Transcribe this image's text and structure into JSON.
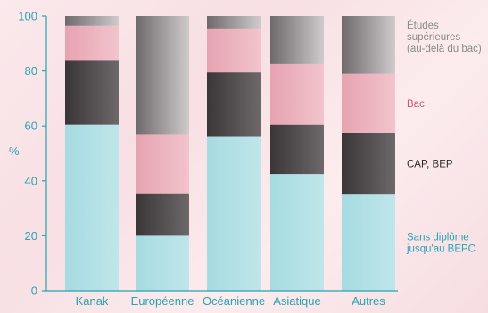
{
  "chart_data": {
    "type": "bar",
    "stacked": true,
    "ylabel": "%",
    "ylim": [
      0,
      100
    ],
    "yticks": [
      0,
      20,
      40,
      60,
      80,
      100
    ],
    "grid": false,
    "legend_placement": "right",
    "categories": [
      "Kanak",
      "Européenne",
      "Océanienne",
      "Asiatique",
      "Autres"
    ],
    "series": [
      {
        "name": "Sans diplôme jusqu'au BEPC",
        "values": [
          60.5,
          20,
          56,
          42.5,
          35
        ],
        "color": "#a9dde3",
        "legend_lines": [
          "Sans diplôme",
          "jusqu'au BEPC"
        ],
        "legend_color": "#27a3b3"
      },
      {
        "name": "CAP, BEP",
        "values": [
          23.5,
          15.5,
          23.5,
          18,
          22.5
        ],
        "color": "#3a3537",
        "legend_lines": [
          "CAP, BEP"
        ],
        "legend_color": "#2a2a2a"
      },
      {
        "name": "Bac",
        "values": [
          12.5,
          21.5,
          16,
          22,
          21.5
        ],
        "color": "#e9aab6",
        "legend_lines": [
          "Bac"
        ],
        "legend_color": "#c45a72"
      },
      {
        "name": "Études supérieures (au-delà du bac)",
        "values": [
          3.5,
          43,
          4.5,
          17.5,
          21
        ],
        "color": "#8d8a8c",
        "legend_lines": [
          "Études",
          "supérieures",
          "(au-delà du bac)"
        ],
        "legend_color": "#8a8a8a"
      }
    ]
  }
}
